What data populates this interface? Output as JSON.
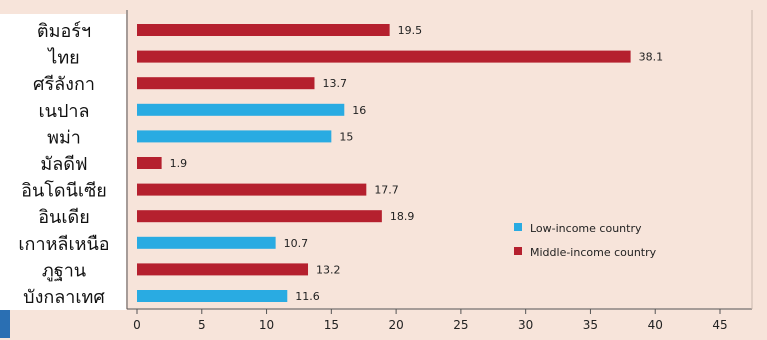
{
  "chart_data": {
    "type": "bar",
    "orientation": "horizontal",
    "categories": [
      "ติมอร์ฯ",
      "ไทย",
      "ศรีลังกา",
      "เนปาล",
      "พม่า",
      "มัลดีฟ",
      "อินโดนีเซีย",
      "อินเดีย",
      "เกาหลีเหนือ",
      "ภูฐาน",
      "บังกลาเทศ"
    ],
    "values": [
      19.5,
      38.1,
      13.7,
      16,
      15,
      1.9,
      17.7,
      18.9,
      10.7,
      13.2,
      11.6
    ],
    "value_labels": [
      "19.5",
      "38.1",
      "13.7",
      "16",
      "15",
      "1.9",
      "17.7",
      "18.9",
      "10.7",
      "13.2",
      "11.6"
    ],
    "groups": [
      "middle",
      "middle",
      "middle",
      "low",
      "low",
      "middle",
      "middle",
      "middle",
      "low",
      "middle",
      "low"
    ],
    "legend": [
      {
        "key": "low",
        "name": "Low-income country",
        "color": "#29abe2"
      },
      {
        "key": "middle",
        "name": "Middle-income country",
        "color": "#b5202e"
      }
    ],
    "xlim": [
      0,
      45
    ],
    "xticks": [
      0,
      5,
      10,
      15,
      20,
      25,
      30,
      35,
      40,
      45
    ],
    "xtick_labels": [
      "0",
      "5",
      "10",
      "15",
      "20",
      "25",
      "30",
      "35",
      "40",
      "45"
    ],
    "grid": false,
    "legend_position": "bottom-right"
  },
  "colors": {
    "background": "#f7e4da",
    "label_panel": "#ffffff",
    "axis": "#555555",
    "text": "#222222",
    "accent_strip": "#2a6fb3"
  }
}
